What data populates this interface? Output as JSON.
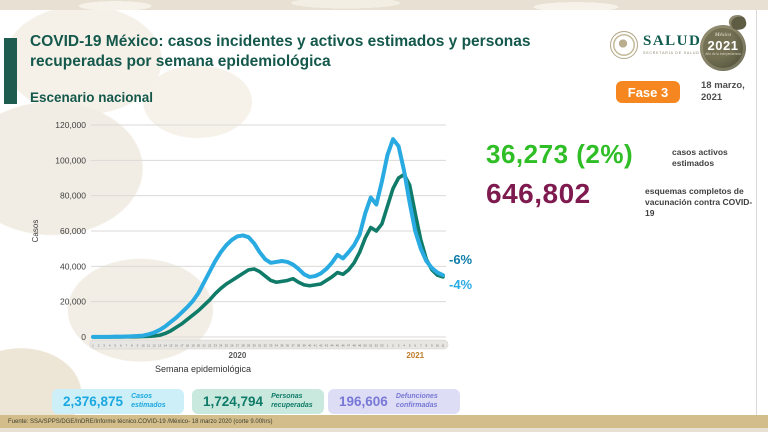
{
  "header": {
    "title": "COVID-19 México: casos incidentes y activos estimados y personas recuperadas por semana epidemiológica",
    "subtitle": "Escenario nacional",
    "salud": {
      "name": "SALUD",
      "subname": "SECRETARÍA DE SALUD"
    },
    "badge2021": {
      "country": "México",
      "year": "2021",
      "motto": "Año de la Independencia"
    },
    "fase_label": "Fase 3",
    "date_line1": "18 marzo,",
    "date_line2": "2021"
  },
  "colors": {
    "title_teal": "#14584C",
    "accent_green_bar": "#1F5C50",
    "fase_orange": "#F6861F",
    "footer_tan": "#D2BD8B"
  },
  "right_stats": {
    "active": {
      "value": "36,273 (2%)",
      "label": "casos activos estimados",
      "color": "#2FBE26"
    },
    "vaccination": {
      "value": "646,802",
      "label": "esquemas completos de vacunación contra COVID-19",
      "color": "#7E1A4E"
    }
  },
  "bottom_stats": [
    {
      "value": "2,376,875",
      "label": "Casos estimados",
      "color": "#1BA8E0",
      "bg": "#CDEFF8"
    },
    {
      "value": "1,724,794",
      "label": "Personas recuperadas",
      "color": "#0F7B68",
      "bg": "#C9E9DE"
    },
    {
      "value": "196,606",
      "label": "Defunciones confirmadas",
      "color": "#7878D6",
      "bg": "#DEDDF6"
    }
  ],
  "footer": {
    "source": "Fuente: SSA/SPPS/DGE/InDRE/Informe técnico.COVID-19 /México- 18 marzo 2020 (corte 9.00hrs)"
  },
  "chart_data": {
    "type": "line",
    "title": "",
    "xlabel": "Semana epidemiológica",
    "ylabel": "Casos",
    "ylim": [
      0,
      120000
    ],
    "ytick_step": 20000,
    "grid": true,
    "legend_position": "none",
    "x_groups": [
      {
        "label": "2020",
        "weeks": 53,
        "label_color": "#595959"
      },
      {
        "label": "2021",
        "weeks": 11,
        "label_color": "#BF7B2A"
      }
    ],
    "series": [
      {
        "name": "Casos estimados",
        "color": "#29ABE2",
        "stroke_width": 4,
        "end_label": "-4%",
        "end_label_color": "#29ABE2",
        "end_label_dy": 14,
        "values": [
          100,
          100,
          100,
          100,
          200,
          200,
          300,
          400,
          600,
          800,
          1500,
          2500,
          4000,
          6000,
          8500,
          11000,
          14000,
          17000,
          20500,
          25000,
          31000,
          37000,
          43000,
          48000,
          52000,
          55000,
          57000,
          57500,
          56500,
          53000,
          48000,
          44000,
          42000,
          42500,
          43000,
          42500,
          41000,
          38500,
          35500,
          34000,
          34500,
          36000,
          38500,
          42000,
          46500,
          44500,
          48000,
          52000,
          58000,
          70000,
          79000,
          75000,
          88000,
          103000,
          112000,
          108000,
          94000,
          76000,
          60000,
          50000,
          43000,
          39000,
          36500,
          35000
        ]
      },
      {
        "name": "Personas recuperadas",
        "color": "#0F7B68",
        "stroke_width": 3.6,
        "end_label": "-6%",
        "end_label_color": "#0C7CA8",
        "end_label_dy": -13,
        "values": [
          0,
          0,
          0,
          0,
          0,
          0,
          100,
          100,
          200,
          300,
          400,
          600,
          1000,
          2000,
          3500,
          5500,
          7500,
          10000,
          12500,
          15000,
          18000,
          21000,
          24500,
          27500,
          30000,
          32000,
          34000,
          36000,
          38000,
          38500,
          37000,
          34500,
          32000,
          31000,
          31500,
          32000,
          33000,
          31000,
          29500,
          29000,
          29500,
          30000,
          32000,
          34000,
          36500,
          35500,
          38000,
          42000,
          48000,
          56000,
          62000,
          60000,
          64000,
          74000,
          84000,
          90000,
          92000,
          86000,
          70000,
          55000,
          44000,
          38000,
          35000,
          34000
        ]
      }
    ]
  }
}
